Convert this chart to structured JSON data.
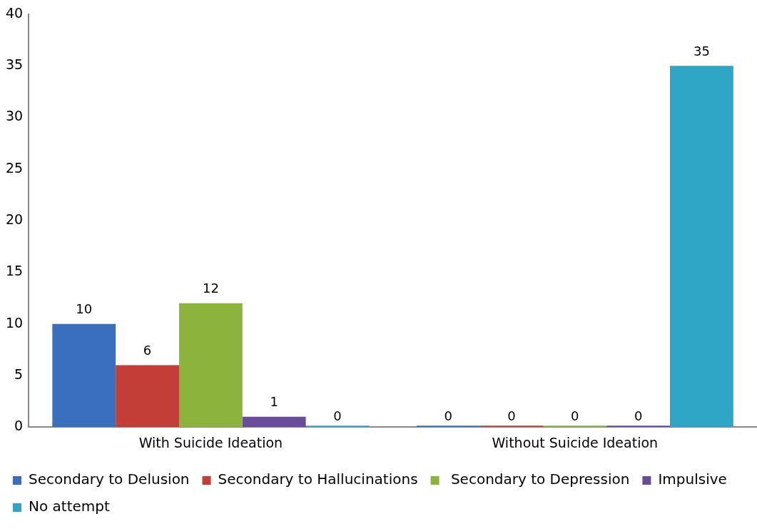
{
  "chart_data": {
    "type": "bar",
    "categories": [
      "With Suicide Ideation",
      "Without Suicide Ideation"
    ],
    "series": [
      {
        "name": "Secondary to Delusion",
        "color": "#3a6fc0",
        "values": [
          10,
          0
        ]
      },
      {
        "name": "Secondary to Hallucinations",
        "color": "#c43e38",
        "values": [
          6,
          0
        ]
      },
      {
        "name": " Secondary to Depression",
        "color": "#8cb43c",
        "values": [
          12,
          0
        ]
      },
      {
        "name": "Impulsive",
        "color": "#6b4c9a",
        "values": [
          1,
          0
        ]
      },
      {
        "name": "No attempt",
        "color": "#2fa6c6",
        "values": [
          0,
          35
        ]
      }
    ],
    "ylim": [
      0,
      40
    ],
    "yticks": [
      0,
      5,
      10,
      15,
      20,
      25,
      30,
      35,
      40
    ],
    "grid": false,
    "legend": "bottom",
    "data_labels": true
  }
}
